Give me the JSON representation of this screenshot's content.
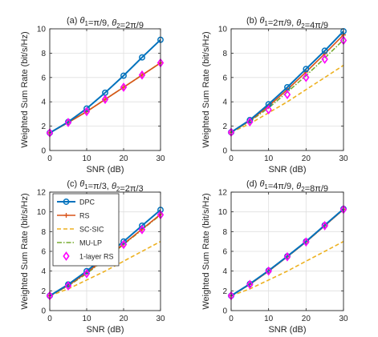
{
  "colors": {
    "DPC": "#0072BD",
    "RS": "#D95319",
    "SC-SIC": "#EDB120",
    "MU-LP": "#77AC30",
    "1-layer RS": "#FF00FF",
    "grid": "#DFDFDF",
    "axis": "#262626"
  },
  "legend": {
    "entries": [
      "DPC",
      "RS",
      "SC-SIC",
      "MU-LP",
      "1-layer RS"
    ],
    "placement": "top-left of panel (c)"
  },
  "chart_data": [
    {
      "panel": "a",
      "type": "line",
      "title_prefix": "(a) ",
      "title_theta1": "=π/9",
      "title_theta2": "=2π/9",
      "xlabel": "SNR (dB)",
      "ylabel": "Weighted Sum Rate (bit/s/Hz)",
      "xlim": [
        0,
        30
      ],
      "ylim": [
        0,
        10
      ],
      "xticks": [
        0,
        10,
        20,
        30
      ],
      "yticks": [
        0,
        2,
        4,
        6,
        8,
        10
      ],
      "grid": true,
      "x": [
        0,
        5,
        10,
        15,
        20,
        25,
        30
      ],
      "series": [
        {
          "name": "DPC",
          "values": [
            1.45,
            2.35,
            3.45,
            4.75,
            6.15,
            7.65,
            9.1
          ]
        },
        {
          "name": "RS",
          "values": [
            1.45,
            2.3,
            3.2,
            4.2,
            5.2,
            6.2,
            7.2
          ]
        },
        {
          "name": "SC-SIC",
          "values": [
            1.45,
            2.3,
            3.2,
            4.2,
            5.2,
            6.2,
            7.2
          ]
        },
        {
          "name": "MU-LP",
          "values": [
            1.45,
            2.3,
            3.2,
            4.2,
            5.2,
            6.2,
            7.2
          ]
        },
        {
          "name": "1-layer RS",
          "values": [
            1.45,
            2.3,
            3.2,
            4.2,
            5.2,
            6.2,
            7.2
          ]
        }
      ]
    },
    {
      "panel": "b",
      "type": "line",
      "title_prefix": "(b) ",
      "title_theta1": "=2π/9",
      "title_theta2": "=4π/9",
      "xlabel": "SNR (dB)",
      "ylabel": "Weighted Sum Rate (bit/s/Hz)",
      "xlim": [
        0,
        30
      ],
      "ylim": [
        0,
        10
      ],
      "xticks": [
        0,
        10,
        20,
        30
      ],
      "yticks": [
        0,
        2,
        4,
        6,
        8,
        10
      ],
      "grid": true,
      "x": [
        0,
        5,
        10,
        15,
        20,
        25,
        30
      ],
      "series": [
        {
          "name": "DPC",
          "values": [
            1.5,
            2.5,
            3.8,
            5.2,
            6.7,
            8.2,
            9.8
          ]
        },
        {
          "name": "RS",
          "values": [
            1.5,
            2.45,
            3.65,
            5.0,
            6.45,
            7.95,
            9.5
          ]
        },
        {
          "name": "SC-SIC",
          "values": [
            1.5,
            2.2,
            3.1,
            4.0,
            5.0,
            6.0,
            7.0
          ]
        },
        {
          "name": "MU-LP",
          "values": [
            1.5,
            2.4,
            3.5,
            4.8,
            6.15,
            7.6,
            9.1
          ]
        },
        {
          "name": "1-layer RS",
          "values": [
            1.5,
            2.35,
            3.35,
            4.6,
            6.0,
            7.5,
            9.05
          ]
        }
      ]
    },
    {
      "panel": "c",
      "type": "line",
      "title_prefix": "(c) ",
      "title_theta1": "=π/3",
      "title_theta2": "=2π/3",
      "xlabel": "SNR (dB)",
      "ylabel": "Weighted Sum Rate (bit/s/Hz)",
      "xlim": [
        0,
        30
      ],
      "ylim": [
        0,
        12
      ],
      "xticks": [
        0,
        10,
        20,
        30
      ],
      "yticks": [
        0,
        2,
        4,
        6,
        8,
        10,
        12
      ],
      "grid": true,
      "x": [
        0,
        5,
        10,
        15,
        20,
        25,
        30
      ],
      "series": [
        {
          "name": "DPC",
          "values": [
            1.5,
            2.65,
            4.0,
            5.5,
            7.0,
            8.6,
            10.2
          ]
        },
        {
          "name": "RS",
          "values": [
            1.5,
            2.55,
            3.85,
            5.25,
            6.75,
            8.25,
            9.75
          ]
        },
        {
          "name": "SC-SIC",
          "values": [
            1.5,
            2.2,
            3.1,
            4.0,
            5.0,
            6.0,
            7.0
          ]
        },
        {
          "name": "MU-LP",
          "values": [
            1.5,
            2.5,
            3.75,
            5.2,
            6.7,
            8.2,
            9.7
          ]
        },
        {
          "name": "1-layer RS",
          "values": [
            1.5,
            2.5,
            3.75,
            5.2,
            6.7,
            8.2,
            9.7
          ]
        }
      ]
    },
    {
      "panel": "d",
      "type": "line",
      "title_prefix": "(d) ",
      "title_theta1": "=4π/9",
      "title_theta2": "=8π/9",
      "xlabel": "SNR (dB)",
      "ylabel": "Weighted Sum Rate (bit/s/Hz)",
      "xlim": [
        0,
        30
      ],
      "ylim": [
        0,
        12
      ],
      "xticks": [
        0,
        10,
        20,
        30
      ],
      "yticks": [
        0,
        2,
        4,
        6,
        8,
        10,
        12
      ],
      "grid": true,
      "x": [
        0,
        5,
        10,
        15,
        20,
        25,
        30
      ],
      "series": [
        {
          "name": "DPC",
          "values": [
            1.5,
            2.7,
            4.05,
            5.5,
            7.0,
            8.65,
            10.3
          ]
        },
        {
          "name": "RS",
          "values": [
            1.5,
            2.65,
            4.0,
            5.45,
            6.95,
            8.6,
            10.25
          ]
        },
        {
          "name": "SC-SIC",
          "values": [
            1.5,
            2.2,
            3.1,
            4.0,
            5.0,
            6.0,
            7.0
          ]
        },
        {
          "name": "MU-LP",
          "values": [
            1.5,
            2.65,
            4.0,
            5.45,
            6.95,
            8.6,
            10.25
          ]
        },
        {
          "name": "1-layer RS",
          "values": [
            1.5,
            2.65,
            4.0,
            5.45,
            6.95,
            8.6,
            10.25
          ]
        }
      ]
    }
  ]
}
